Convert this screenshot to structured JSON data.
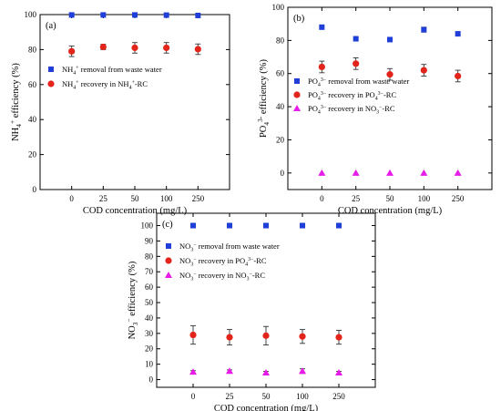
{
  "chart_data": [
    {
      "type": "scatter",
      "panel_label": "(a)",
      "categories": [
        "0",
        "25",
        "50",
        "100",
        "250"
      ],
      "xlabel": "COD concentration (mg/L)",
      "ylabel": "NH4+ efficiency (%)",
      "ylabel_parts": {
        "pre": "NH",
        "sub": "4",
        "sup": "+",
        "post": " efficiency (%)"
      },
      "ylim": [
        0,
        100
      ],
      "yticks": [
        0,
        20,
        40,
        60,
        80,
        100
      ],
      "legend_position": "middle-left",
      "series": [
        {
          "name": "NH4+ removal from waste water",
          "label_parts": {
            "pre": "NH",
            "sub": "4",
            "sup": "+",
            "post": " removal from waste water"
          },
          "marker": "square",
          "color": "#1f3fd8",
          "values": [
            99.8,
            99.8,
            99.8,
            99.7,
            99.5
          ],
          "errors": [
            0,
            0,
            0,
            0,
            0
          ]
        },
        {
          "name": "NH4+ recovery in NH4+-RC",
          "label_parts": {
            "pre": "NH",
            "sub": "4",
            "sup": "+",
            "post": " recovery in NH",
            "sub2": "4",
            "sup2": "+",
            "post2": "-RC"
          },
          "marker": "circle",
          "color": "#e3241b",
          "values": [
            79,
            81.5,
            81,
            81,
            80.2
          ],
          "errors": [
            3,
            1.5,
            3,
            3,
            3
          ]
        }
      ]
    },
    {
      "type": "scatter",
      "panel_label": "(b)",
      "categories": [
        "0",
        "25",
        "50",
        "100",
        "250"
      ],
      "xlabel": "COD concentration (mg/L)",
      "ylabel": "PO43- efficiency (%)",
      "ylabel_parts": {
        "pre": "PO",
        "sub": "4",
        "sup": "3-",
        "post": " efficiency (%)"
      },
      "ylim": [
        -10,
        100
      ],
      "yticks": [
        0,
        20,
        40,
        60,
        80,
        100
      ],
      "legend_position": "middle-left",
      "series": [
        {
          "name": "PO43- removal from waste water",
          "label_parts": {
            "pre": "PO",
            "sub": "4",
            "sup": "3−",
            "post": " removal from waste water"
          },
          "marker": "square",
          "color": "#1f3fd8",
          "values": [
            88,
            81,
            80.5,
            86.5,
            84
          ],
          "errors": [
            0,
            0,
            0,
            1.5,
            0
          ]
        },
        {
          "name": "PO43- recovery in PO43--RC",
          "label_parts": {
            "pre": "PO",
            "sub": "4",
            "sup": "3−",
            "post": " recovery in PO",
            "sub2": "4",
            "sup2": "3−",
            "post2": "-RC"
          },
          "marker": "circle",
          "color": "#e3241b",
          "values": [
            64,
            66,
            59.5,
            62,
            58.5
          ],
          "errors": [
            3.5,
            3.5,
            3.5,
            3.5,
            3.5
          ]
        },
        {
          "name": "PO43- recovery in NO3--RC",
          "label_parts": {
            "pre": "PO",
            "sub": "4",
            "sup": "3−",
            "post": " recovery in NO",
            "sub2": "3",
            "sup2": "−",
            "post2": "-RC"
          },
          "marker": "triangle",
          "color": "#e81ce8",
          "values": [
            0,
            0,
            0,
            0,
            0
          ],
          "errors": [
            0,
            0,
            0,
            0,
            0
          ]
        }
      ]
    },
    {
      "type": "scatter",
      "panel_label": "(c)",
      "categories": [
        "0",
        "25",
        "50",
        "100",
        "250"
      ],
      "xlabel": "COD concentration (mg/L)",
      "ylabel": "NO3- efficiency (%)",
      "ylabel_parts": {
        "pre": "NO",
        "sub": "3",
        "sup": "−",
        "post": " efficiency (%)"
      },
      "ylim": [
        -5,
        108
      ],
      "yticks": [
        0,
        10,
        20,
        30,
        40,
        50,
        60,
        70,
        80,
        90,
        100
      ],
      "legend_position": "top-left",
      "series": [
        {
          "name": "NO3- removal from waste water",
          "label_parts": {
            "pre": "NO",
            "sub": "3",
            "sup": "−",
            "post": " removal from waste water"
          },
          "marker": "square",
          "color": "#1f3fd8",
          "values": [
            100,
            100,
            100,
            100,
            100
          ],
          "errors": [
            0,
            0,
            0,
            0,
            0
          ]
        },
        {
          "name": "NO3- recovery in PO43--RC",
          "label_parts": {
            "pre": "NO",
            "sub": "3",
            "sup": "−",
            "post": " recovery in PO",
            "sub2": "4",
            "sup2": "3−",
            "post2": "-RC"
          },
          "marker": "circle",
          "color": "#e3241b",
          "values": [
            29,
            27.5,
            28.5,
            28,
            27.5
          ],
          "errors": [
            6,
            5,
            6,
            4.5,
            4.5
          ]
        },
        {
          "name": "NO3- recovery in NO3--RC",
          "label_parts": {
            "pre": "NO",
            "sub": "3",
            "sup": "−",
            "post": " recovery in NO",
            "sub2": "3",
            "sup2": "−",
            "post2": "-RC"
          },
          "marker": "triangle",
          "color": "#e81ce8",
          "values": [
            5,
            5.5,
            4.5,
            5.5,
            4.5
          ],
          "errors": [
            0.8,
            0.8,
            0.8,
            1.5,
            0.8
          ]
        }
      ]
    }
  ]
}
